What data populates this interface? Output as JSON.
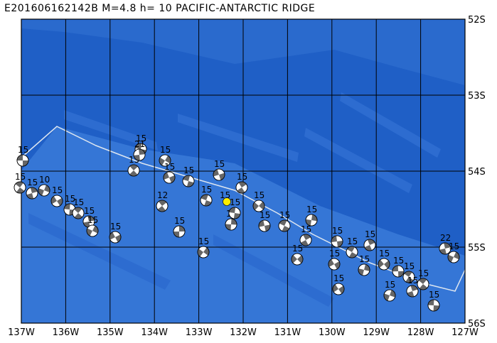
{
  "title": "E201606162142B M=4.8 h= 10 PACIFIC-ANTARCTIC RIDGE",
  "lat_labels": [
    "52S",
    "53S",
    "54S",
    "55S",
    "56S"
  ],
  "lon_labels": [
    "137W",
    "136W",
    "135W",
    "134W",
    "133W",
    "132W",
    "131W",
    "130W",
    "129W",
    "128W",
    "127W"
  ],
  "colors": {
    "ocean_deep": "#1f5fc6",
    "ocean_shallow": "#3a7ad8",
    "grid": "#000000",
    "plate_boundary": "#dde6f0",
    "epicenter": "#ffee00"
  },
  "epicenter": {
    "label": "15"
  },
  "mechanisms": [
    {
      "label": "15"
    },
    {
      "label": "15"
    },
    {
      "label": "15"
    },
    {
      "label": "10"
    },
    {
      "label": "15"
    },
    {
      "label": "15"
    },
    {
      "label": "15"
    },
    {
      "label": "15"
    },
    {
      "label": "15"
    },
    {
      "label": "15"
    },
    {
      "label": "15"
    },
    {
      "label": "15"
    },
    {
      "label": "21"
    },
    {
      "label": "15"
    },
    {
      "label": "15"
    },
    {
      "label": "15"
    },
    {
      "label": "12"
    },
    {
      "label": "15"
    },
    {
      "label": "15"
    },
    {
      "label": "15"
    },
    {
      "label": "15"
    },
    {
      "label": "15"
    },
    {
      "label": "15"
    },
    {
      "label": "15"
    },
    {
      "label": "15"
    },
    {
      "label": "15"
    },
    {
      "label": "15"
    },
    {
      "label": "15"
    },
    {
      "label": "15"
    },
    {
      "label": "15"
    },
    {
      "label": "15"
    },
    {
      "label": "15"
    },
    {
      "label": "15"
    },
    {
      "label": "15"
    },
    {
      "label": "15"
    },
    {
      "label": "15"
    },
    {
      "label": "15"
    },
    {
      "label": "15"
    },
    {
      "label": "15"
    },
    {
      "label": "15"
    },
    {
      "label": "15"
    },
    {
      "label": "22"
    },
    {
      "label": "15"
    },
    {
      "label": "15"
    },
    {
      "label": "15"
    }
  ]
}
